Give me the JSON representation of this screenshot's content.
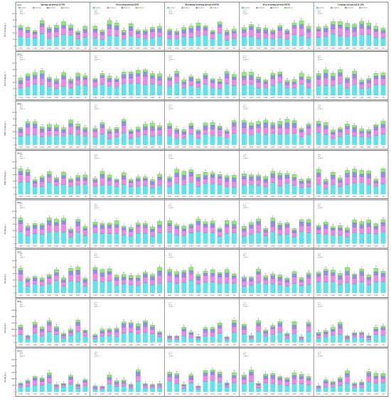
{
  "figure": {
    "stages": [
      "Spring up period (STP)",
      "Flowering period (FP)",
      "Maximum fruiting period (MFP)",
      "Post-fruiting period (PFP)",
      "Leafing-out period (LOP)"
    ],
    "legend": [
      "0–20 cm",
      "20–40 cm",
      "40–60 cm",
      "60–80 cm"
    ],
    "categories": [
      "L1N1",
      "L1N2",
      "L1N3",
      "L2N1",
      "L2N2",
      "L2N3",
      "L3N1",
      "L3N2",
      "L3N3",
      "CK"
    ],
    "stats_lines": [
      "L **",
      "N **",
      "L×N **"
    ],
    "colors": {
      "layer1": "#55e8ee",
      "layer2": "#ee88ee",
      "layer3": "#8f8ff0",
      "layer4": "#8ee87a"
    }
  },
  "chart_data": [
    {
      "type": "bar",
      "stacked": true,
      "panel": 1,
      "year": "2021",
      "ylabel": "NO3--N (mg kg-1)",
      "ylim": [
        0,
        100
      ],
      "yticks": [
        "0",
        "20",
        "40",
        "60",
        "80",
        "100"
      ],
      "series_names": [
        "0–20 cm",
        "20–40 cm",
        "40–60 cm",
        "60–80 cm"
      ]
    },
    {
      "type": "bar",
      "stacked": true,
      "panel": 2,
      "year": "2022",
      "ylabel": "NO3--N (mg kg-1)",
      "ylim": [
        0,
        100
      ],
      "yticks": [
        "0",
        "20",
        "40",
        "60",
        "80",
        "100"
      ]
    },
    {
      "type": "bar",
      "stacked": true,
      "panel": 3,
      "year": "2021",
      "ylabel": "NH4+-N (mg kg-1)",
      "ylim": [
        0,
        100
      ],
      "yticks": [
        "0",
        "20",
        "40",
        "60",
        "80",
        "100"
      ]
    },
    {
      "type": "bar",
      "stacked": true,
      "panel": 4,
      "year": "2022",
      "ylabel": "NH4+-N (mg kg-1)",
      "ylim": [
        0,
        100
      ],
      "yticks": [
        "0",
        "20",
        "40",
        "60",
        "80",
        "100"
      ]
    },
    {
      "type": "bar",
      "stacked": true,
      "panel": 5,
      "year": "2021",
      "ylabel": "AP (mg kg-1)",
      "ylim": [
        0,
        100
      ],
      "yticks": [
        "0",
        "20",
        "40",
        "60",
        "80",
        "100"
      ]
    },
    {
      "type": "bar",
      "stacked": true,
      "panel": 6,
      "year": "2022",
      "ylabel": "AP (mg kg-1)",
      "ylim": [
        0,
        100
      ],
      "yticks": [
        "0",
        "20",
        "40",
        "60",
        "80",
        "100"
      ]
    },
    {
      "type": "bar",
      "stacked": true,
      "panel": 7,
      "year": "2021",
      "ylabel": "AK (mg kg-1)",
      "ylim": [
        0,
        2500
      ],
      "yticks": [
        "0",
        "500",
        "1000",
        "1500",
        "2000",
        "2500"
      ]
    },
    {
      "type": "bar",
      "stacked": true,
      "panel": 8,
      "year": "2022",
      "ylabel": "AK (mg kg-1)",
      "ylim": [
        0,
        2500
      ],
      "yticks": [
        "0",
        "500",
        "1000",
        "1500",
        "2000",
        "2500"
      ]
    }
  ]
}
